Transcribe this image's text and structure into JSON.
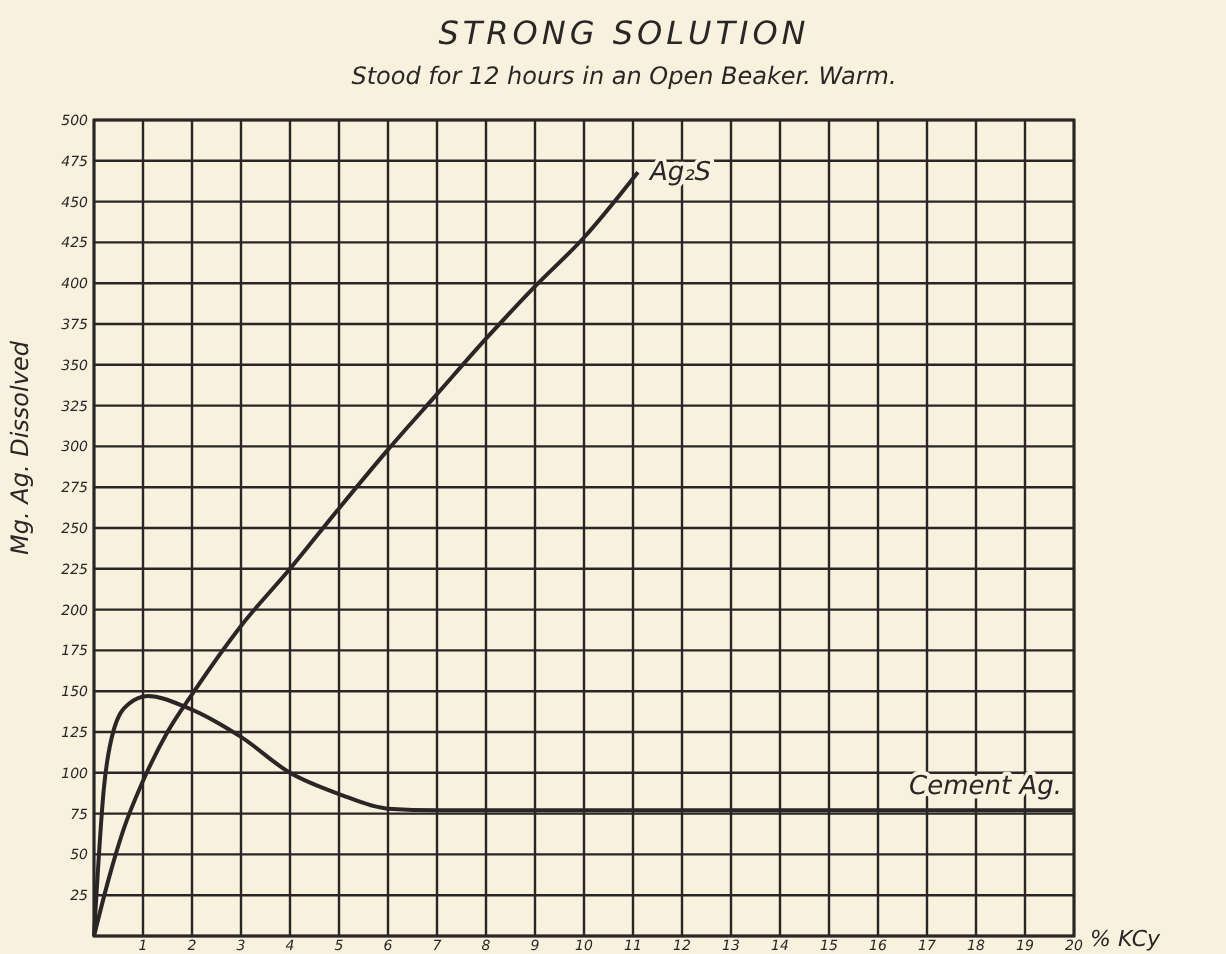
{
  "chart_data": {
    "type": "line",
    "title": "STRONG SOLUTION",
    "subtitle": "Stood for 12 hours in an Open Beaker. Warm.",
    "xlabel": "% KCy",
    "ylabel": "Mg. Ag. Dissolved",
    "xlim": [
      0,
      20
    ],
    "ylim": [
      0,
      500
    ],
    "xticks": [
      {
        "value": 0,
        "label": null
      },
      1,
      2,
      3,
      4,
      5,
      6,
      7,
      8,
      9,
      10,
      11,
      12,
      13,
      14,
      15,
      16,
      17,
      18,
      19,
      20
    ],
    "yticks": [
      {
        "value": 0,
        "label": null
      },
      25,
      50,
      75,
      100,
      125,
      150,
      175,
      200,
      225,
      250,
      275,
      300,
      325,
      350,
      375,
      400,
      425,
      450,
      475,
      500
    ],
    "grid": true,
    "marker": "none",
    "line_style": "solid",
    "series": [
      {
        "name": "Ag₂S",
        "color": "#2a2626",
        "x": [
          0,
          0.3,
          0.6,
          1,
          1.5,
          2,
          3,
          4,
          5,
          6,
          7,
          8,
          9,
          10,
          11.1
        ],
        "values": [
          0,
          35,
          65,
          95,
          125,
          148,
          190,
          225,
          262,
          298,
          332,
          366,
          398,
          428,
          468
        ]
      },
      {
        "name": "Cement Ag.",
        "color": "#2a2626",
        "x": [
          0,
          0.2,
          0.4,
          0.7,
          1.1,
          1.9,
          3,
          4,
          5,
          6,
          7,
          10,
          15,
          20
        ],
        "values": [
          0,
          90,
          126,
          142,
          147,
          140,
          122,
          100,
          87,
          78,
          77,
          77,
          77,
          77
        ]
      }
    ]
  }
}
